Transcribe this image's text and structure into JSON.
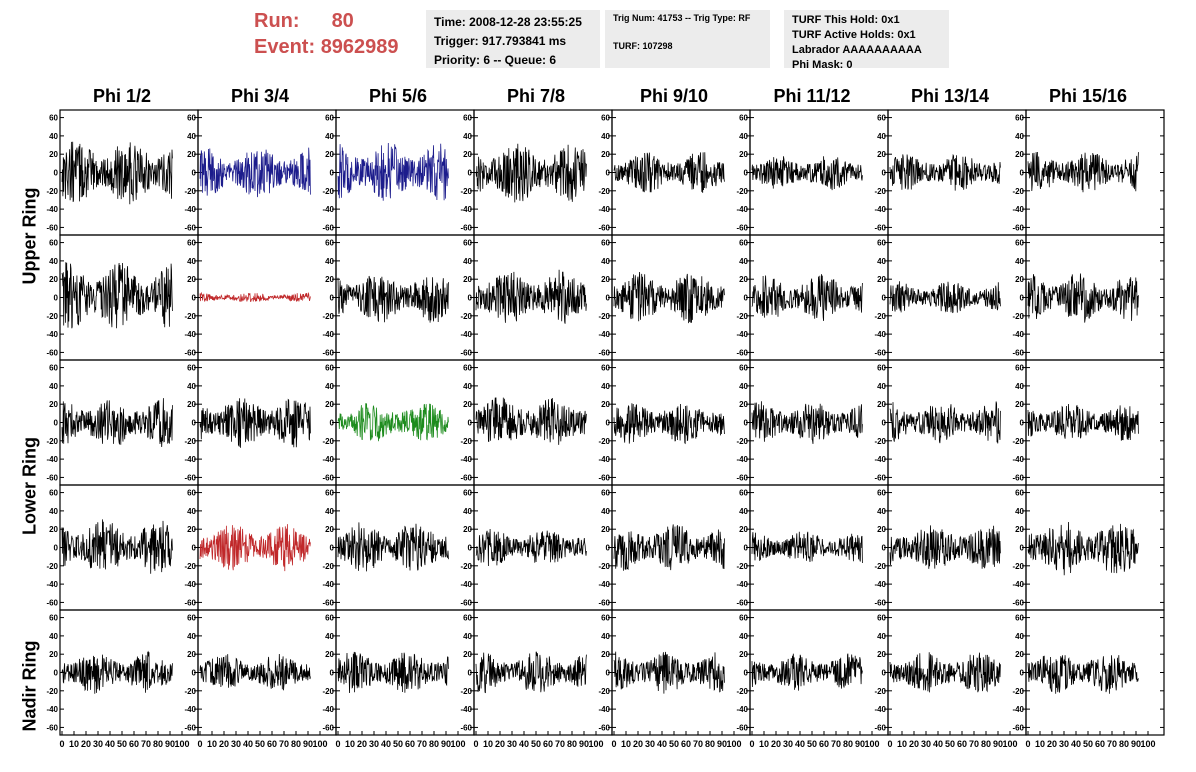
{
  "header": {
    "run_label": "Run:",
    "run_value": "80",
    "event_label": "Event:",
    "event_value": "8962989"
  },
  "info_box_1": {
    "time": "Time: 2008-12-28 23:55:25",
    "trigger": "Trigger: 917.793841 ms",
    "priority": "Priority: 6 -- Queue: 6"
  },
  "info_box_2": {
    "trig": "Trig Num: 41753 -- Trig Type: RF",
    "turf": "TURF: 107298"
  },
  "info_box_3": {
    "hold": "TURF This Hold: 0x1",
    "active_holds": "TURF Active Holds: 0x1",
    "labrador": "Labrador AAAAAAAAAA",
    "phi_mask": "Phi Mask: 0"
  },
  "columns": [
    "Phi 1/2",
    "Phi 3/4",
    "Phi 5/6",
    "Phi 7/8",
    "Phi 9/10",
    "Phi 11/12",
    "Phi 13/14",
    "Phi 15/16"
  ],
  "ring_labels": {
    "upper": "Upper Ring",
    "lower": "Lower Ring",
    "nadir": "Nadir Ring"
  },
  "colors": {
    "blue": "#1c1c8c",
    "red": "#c0282a",
    "green": "#1e8c1e",
    "default": "#000000",
    "header_red": "#cc5050",
    "info_bg": "#ececec"
  },
  "chart_data": {
    "type": "line",
    "layout": "5x8 grid of waveform panels",
    "xlim": [
      0,
      100
    ],
    "ylim": [
      -65,
      65
    ],
    "x_tick_labels": [
      "0",
      "10",
      "20",
      "30",
      "40",
      "50",
      "60",
      "70",
      "80",
      "90",
      "100"
    ],
    "y_tick_labels": [
      "60",
      "40",
      "20",
      "0",
      "-20",
      "-40",
      "-60"
    ],
    "samples_per_trace": 260,
    "panels": [
      [
        {
          "amp": 28,
          "color": "default"
        },
        {
          "amp": 22,
          "color": "blue"
        },
        {
          "amp": 26,
          "color": "blue"
        },
        {
          "amp": 26,
          "color": "default"
        },
        {
          "amp": 18,
          "color": "default"
        },
        {
          "amp": 15,
          "color": "default"
        },
        {
          "amp": 16,
          "color": "default"
        },
        {
          "amp": 18,
          "color": "default"
        }
      ],
      [
        {
          "amp": 30,
          "color": "default"
        },
        {
          "amp": 4,
          "color": "red"
        },
        {
          "amp": 22,
          "color": "default"
        },
        {
          "amp": 24,
          "color": "default"
        },
        {
          "amp": 22,
          "color": "default"
        },
        {
          "amp": 20,
          "color": "default"
        },
        {
          "amp": 14,
          "color": "default"
        },
        {
          "amp": 22,
          "color": "default"
        }
      ],
      [
        {
          "amp": 22,
          "color": "default"
        },
        {
          "amp": 22,
          "color": "default"
        },
        {
          "amp": 18,
          "color": "green"
        },
        {
          "amp": 22,
          "color": "default"
        },
        {
          "amp": 18,
          "color": "default"
        },
        {
          "amp": 18,
          "color": "default"
        },
        {
          "amp": 18,
          "color": "default"
        },
        {
          "amp": 16,
          "color": "default"
        }
      ],
      [
        {
          "amp": 24,
          "color": "default"
        },
        {
          "amp": 20,
          "color": "red"
        },
        {
          "amp": 22,
          "color": "default"
        },
        {
          "amp": 16,
          "color": "default"
        },
        {
          "amp": 20,
          "color": "default"
        },
        {
          "amp": 14,
          "color": "default"
        },
        {
          "amp": 20,
          "color": "default"
        },
        {
          "amp": 24,
          "color": "default"
        }
      ],
      [
        {
          "amp": 18,
          "color": "default"
        },
        {
          "amp": 16,
          "color": "default"
        },
        {
          "amp": 18,
          "color": "default"
        },
        {
          "amp": 18,
          "color": "default"
        },
        {
          "amp": 18,
          "color": "default"
        },
        {
          "amp": 16,
          "color": "default"
        },
        {
          "amp": 18,
          "color": "default"
        },
        {
          "amp": 18,
          "color": "default"
        }
      ]
    ]
  }
}
